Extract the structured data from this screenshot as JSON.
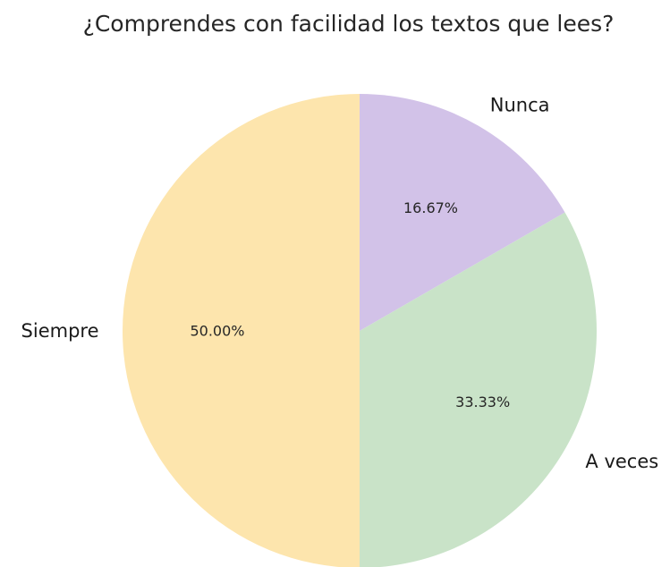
{
  "chart_data": {
    "type": "pie",
    "title": "¿Comprendes con facilidad los textos que lees?",
    "categories": [
      "Nunca",
      "A veces",
      "Siempre"
    ],
    "values": [
      16.67,
      33.33,
      50.0
    ],
    "percent_labels": [
      "16.67%",
      "33.33%",
      "50.00%"
    ],
    "colors": [
      "#d2c2e8",
      "#c9e3c8",
      "#fde5ad"
    ],
    "start_angle_deg": 90,
    "direction": "clockwise"
  }
}
